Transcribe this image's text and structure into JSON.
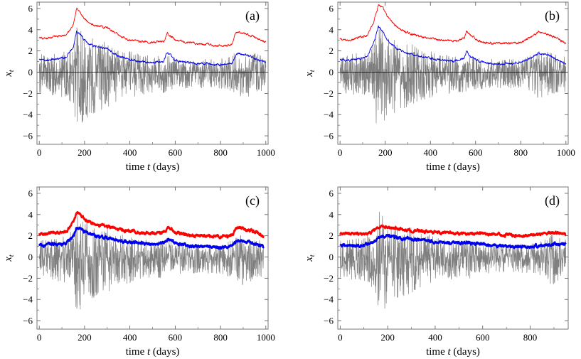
{
  "figure": {
    "colors": {
      "noise": "#7f7f7f",
      "upper": "#ff0000",
      "lower": "#0000ee",
      "zero": "#000000"
    }
  },
  "chart_data": [
    {
      "type": "line",
      "panel_label": "(a)",
      "xlabel_pre": "time ",
      "xlabel_var": "t",
      "xlabel_post": " (days)",
      "ylabel_var": "x",
      "ylabel_sub": "t",
      "xlim": [
        -10,
        1010
      ],
      "ylim": [
        -6.8,
        6.6
      ],
      "xticks": [
        0,
        200,
        400,
        600,
        800,
        1000
      ],
      "yticks": [
        -6,
        -4,
        -2,
        0,
        2,
        4,
        6
      ],
      "zero_line": true,
      "thick": false,
      "n_days": 1000,
      "series": [
        {
          "role": "noise",
          "x": [
            0,
            30,
            60,
            90,
            120,
            150,
            165,
            180,
            200,
            230,
            260,
            300,
            350,
            400,
            450,
            500,
            550,
            600,
            650,
            700,
            750,
            800,
            850,
            870,
            900,
            950,
            1000
          ],
          "y": [
            1.4,
            1.3,
            1.4,
            1.5,
            1.6,
            2.2,
            3.6,
            3.4,
            2.9,
            2.6,
            2.4,
            2.3,
            1.8,
            1.6,
            1.4,
            1.3,
            1.3,
            1.1,
            1.0,
            1.0,
            1.0,
            1.0,
            1.3,
            1.6,
            1.7,
            1.5,
            1.2
          ]
        },
        {
          "role": "upper",
          "x": [
            0,
            30,
            60,
            90,
            120,
            150,
            165,
            180,
            200,
            220,
            250,
            300,
            350,
            400,
            450,
            500,
            550,
            565,
            600,
            650,
            700,
            750,
            800,
            850,
            870,
            900,
            950,
            1000
          ],
          "y": [
            3.2,
            3.1,
            3.3,
            3.4,
            3.5,
            4.5,
            6.0,
            5.6,
            5.0,
            4.6,
            4.4,
            4.2,
            3.5,
            3.0,
            2.9,
            2.8,
            2.9,
            3.7,
            3.0,
            2.8,
            2.7,
            2.6,
            2.5,
            2.6,
            3.8,
            3.7,
            3.3,
            2.8
          ]
        },
        {
          "role": "lower",
          "x": [
            0,
            30,
            60,
            90,
            120,
            150,
            165,
            180,
            200,
            220,
            250,
            300,
            350,
            400,
            450,
            500,
            550,
            565,
            600,
            650,
            700,
            750,
            800,
            850,
            870,
            900,
            950,
            1000
          ],
          "y": [
            1.2,
            1.1,
            1.2,
            1.3,
            1.4,
            2.4,
            3.9,
            3.6,
            3.0,
            2.6,
            2.4,
            2.2,
            1.5,
            1.2,
            1.0,
            0.9,
            1.0,
            1.9,
            1.1,
            0.9,
            0.8,
            0.8,
            0.7,
            0.8,
            1.7,
            1.7,
            1.3,
            0.9
          ]
        }
      ]
    },
    {
      "type": "line",
      "panel_label": "(b)",
      "xlabel_pre": "time ",
      "xlabel_var": "t",
      "xlabel_post": " (days)",
      "ylabel_var": "x",
      "ylabel_sub": "t",
      "xlim": [
        -10,
        1010
      ],
      "ylim": [
        -6.8,
        6.6
      ],
      "xticks": [
        0,
        200,
        400,
        600,
        800,
        1000
      ],
      "yticks": [
        -6,
        -4,
        -2,
        0,
        2,
        4,
        6
      ],
      "zero_line": true,
      "thick": false,
      "n_days": 1000,
      "series": [
        {
          "role": "noise",
          "x": [
            0,
            30,
            60,
            90,
            120,
            150,
            165,
            180,
            200,
            230,
            260,
            300,
            350,
            400,
            450,
            500,
            550,
            600,
            650,
            700,
            750,
            800,
            850,
            870,
            900,
            950,
            1000
          ],
          "y": [
            1.4,
            1.3,
            1.4,
            1.5,
            1.6,
            2.2,
            3.6,
            3.4,
            2.9,
            2.6,
            2.4,
            2.3,
            1.8,
            1.6,
            1.4,
            1.3,
            1.3,
            1.1,
            1.0,
            1.0,
            1.0,
            1.0,
            1.3,
            1.6,
            1.7,
            1.5,
            1.2
          ]
        },
        {
          "role": "upper",
          "x": [
            0,
            30,
            60,
            90,
            120,
            150,
            170,
            190,
            210,
            240,
            270,
            300,
            350,
            400,
            450,
            500,
            550,
            560,
            580,
            620,
            680,
            740,
            800,
            850,
            880,
            920,
            960,
            1000
          ],
          "y": [
            3.1,
            3.0,
            3.1,
            3.3,
            3.5,
            4.8,
            6.4,
            6.0,
            5.2,
            4.5,
            4.0,
            3.7,
            3.4,
            3.2,
            3.0,
            2.9,
            3.2,
            3.9,
            3.4,
            2.9,
            2.7,
            2.7,
            2.8,
            3.4,
            3.8,
            3.6,
            3.2,
            2.7
          ]
        },
        {
          "role": "lower",
          "x": [
            0,
            30,
            60,
            90,
            120,
            150,
            170,
            190,
            210,
            240,
            270,
            300,
            350,
            400,
            450,
            500,
            550,
            560,
            580,
            620,
            680,
            740,
            800,
            850,
            880,
            920,
            960,
            1000
          ],
          "y": [
            1.2,
            1.1,
            1.2,
            1.3,
            1.5,
            2.8,
            4.3,
            3.8,
            3.0,
            2.4,
            2.0,
            1.8,
            1.5,
            1.3,
            1.1,
            1.0,
            1.3,
            2.0,
            1.4,
            1.0,
            0.8,
            0.8,
            0.9,
            1.4,
            1.8,
            1.6,
            1.2,
            0.8
          ]
        }
      ]
    },
    {
      "type": "line",
      "panel_label": "(c)",
      "xlabel_pre": "time ",
      "xlabel_var": "t",
      "xlabel_post": " (days)",
      "ylabel_var": "x",
      "ylabel_sub": "t",
      "xlim": [
        -10,
        1010
      ],
      "ylim": [
        -6.8,
        6.6
      ],
      "xticks": [
        0,
        200,
        400,
        600,
        800,
        1000
      ],
      "yticks": [
        -6,
        -4,
        -2,
        0,
        2,
        4,
        6
      ],
      "zero_line": false,
      "thick": true,
      "n_days": 990,
      "series": [
        {
          "role": "noise",
          "x": [
            0,
            30,
            60,
            90,
            120,
            150,
            165,
            180,
            200,
            230,
            260,
            300,
            350,
            400,
            450,
            500,
            550,
            600,
            650,
            700,
            750,
            800,
            850,
            870,
            900,
            950,
            990
          ],
          "y": [
            1.4,
            1.3,
            1.4,
            1.5,
            1.6,
            2.2,
            3.6,
            3.4,
            2.9,
            2.6,
            2.4,
            2.3,
            1.8,
            1.6,
            1.4,
            1.3,
            1.3,
            1.1,
            1.0,
            1.0,
            1.0,
            1.0,
            1.3,
            1.6,
            1.7,
            1.5,
            1.2
          ]
        },
        {
          "role": "upper",
          "x": [
            0,
            30,
            60,
            90,
            120,
            150,
            165,
            180,
            200,
            230,
            260,
            300,
            350,
            400,
            450,
            500,
            550,
            570,
            600,
            650,
            700,
            750,
            800,
            850,
            870,
            900,
            950,
            990
          ],
          "y": [
            2.2,
            2.2,
            2.3,
            2.3,
            2.4,
            3.2,
            4.2,
            4.0,
            3.6,
            3.2,
            3.0,
            2.9,
            2.6,
            2.4,
            2.3,
            2.2,
            2.3,
            2.8,
            2.3,
            2.1,
            2.0,
            2.0,
            1.9,
            2.0,
            2.7,
            2.7,
            2.4,
            1.9
          ]
        },
        {
          "role": "lower",
          "x": [
            0,
            30,
            60,
            90,
            120,
            150,
            165,
            180,
            200,
            230,
            260,
            300,
            350,
            400,
            450,
            500,
            550,
            570,
            600,
            650,
            700,
            750,
            800,
            850,
            870,
            900,
            950,
            990
          ],
          "y": [
            1.1,
            1.1,
            1.2,
            1.2,
            1.3,
            1.9,
            2.7,
            2.7,
            2.4,
            2.1,
            1.9,
            1.8,
            1.6,
            1.4,
            1.3,
            1.2,
            1.3,
            1.7,
            1.3,
            1.1,
            1.0,
            1.0,
            0.9,
            1.0,
            1.5,
            1.5,
            1.3,
            0.9
          ]
        }
      ]
    },
    {
      "type": "line",
      "panel_label": "(d)",
      "xlabel_pre": "time ",
      "xlabel_var": "t",
      "xlabel_post": " (days)",
      "ylabel_var": "x",
      "ylabel_sub": "t",
      "xlim": [
        -10,
        960
      ],
      "ylim": [
        -6.8,
        6.6
      ],
      "xticks": [
        0,
        200,
        400,
        600,
        800
      ],
      "yticks": [
        -6,
        -4,
        -2,
        0,
        2,
        4,
        6
      ],
      "zero_line": false,
      "thick": true,
      "n_days": 950,
      "series": [
        {
          "role": "noise",
          "x": [
            0,
            30,
            60,
            90,
            120,
            150,
            165,
            180,
            200,
            230,
            260,
            300,
            350,
            400,
            450,
            500,
            550,
            600,
            650,
            700,
            750,
            800,
            850,
            870,
            900,
            950
          ],
          "y": [
            1.4,
            1.3,
            1.4,
            1.5,
            1.6,
            2.2,
            3.6,
            3.4,
            2.9,
            2.6,
            2.4,
            2.3,
            1.8,
            1.6,
            1.4,
            1.3,
            1.3,
            1.1,
            1.0,
            1.0,
            1.0,
            1.0,
            1.3,
            1.6,
            1.7,
            1.3
          ]
        },
        {
          "role": "upper",
          "x": [
            0,
            50,
            100,
            130,
            150,
            170,
            200,
            250,
            300,
            350,
            400,
            450,
            500,
            550,
            600,
            650,
            700,
            750,
            800,
            850,
            900,
            950
          ],
          "y": [
            2.2,
            2.2,
            2.2,
            2.3,
            2.6,
            2.9,
            2.8,
            2.6,
            2.5,
            2.4,
            2.3,
            2.3,
            2.2,
            2.2,
            2.2,
            2.1,
            2.1,
            2.0,
            2.0,
            2.2,
            2.3,
            2.2
          ]
        },
        {
          "role": "lower",
          "x": [
            0,
            50,
            100,
            130,
            150,
            170,
            200,
            250,
            300,
            350,
            400,
            450,
            500,
            550,
            600,
            650,
            700,
            750,
            800,
            850,
            900,
            950
          ],
          "y": [
            1.1,
            1.1,
            1.1,
            1.3,
            1.6,
            2.0,
            2.0,
            1.8,
            1.7,
            1.6,
            1.4,
            1.3,
            1.3,
            1.3,
            1.2,
            1.1,
            1.0,
            1.0,
            1.0,
            1.1,
            1.2,
            1.2
          ]
        }
      ]
    }
  ]
}
